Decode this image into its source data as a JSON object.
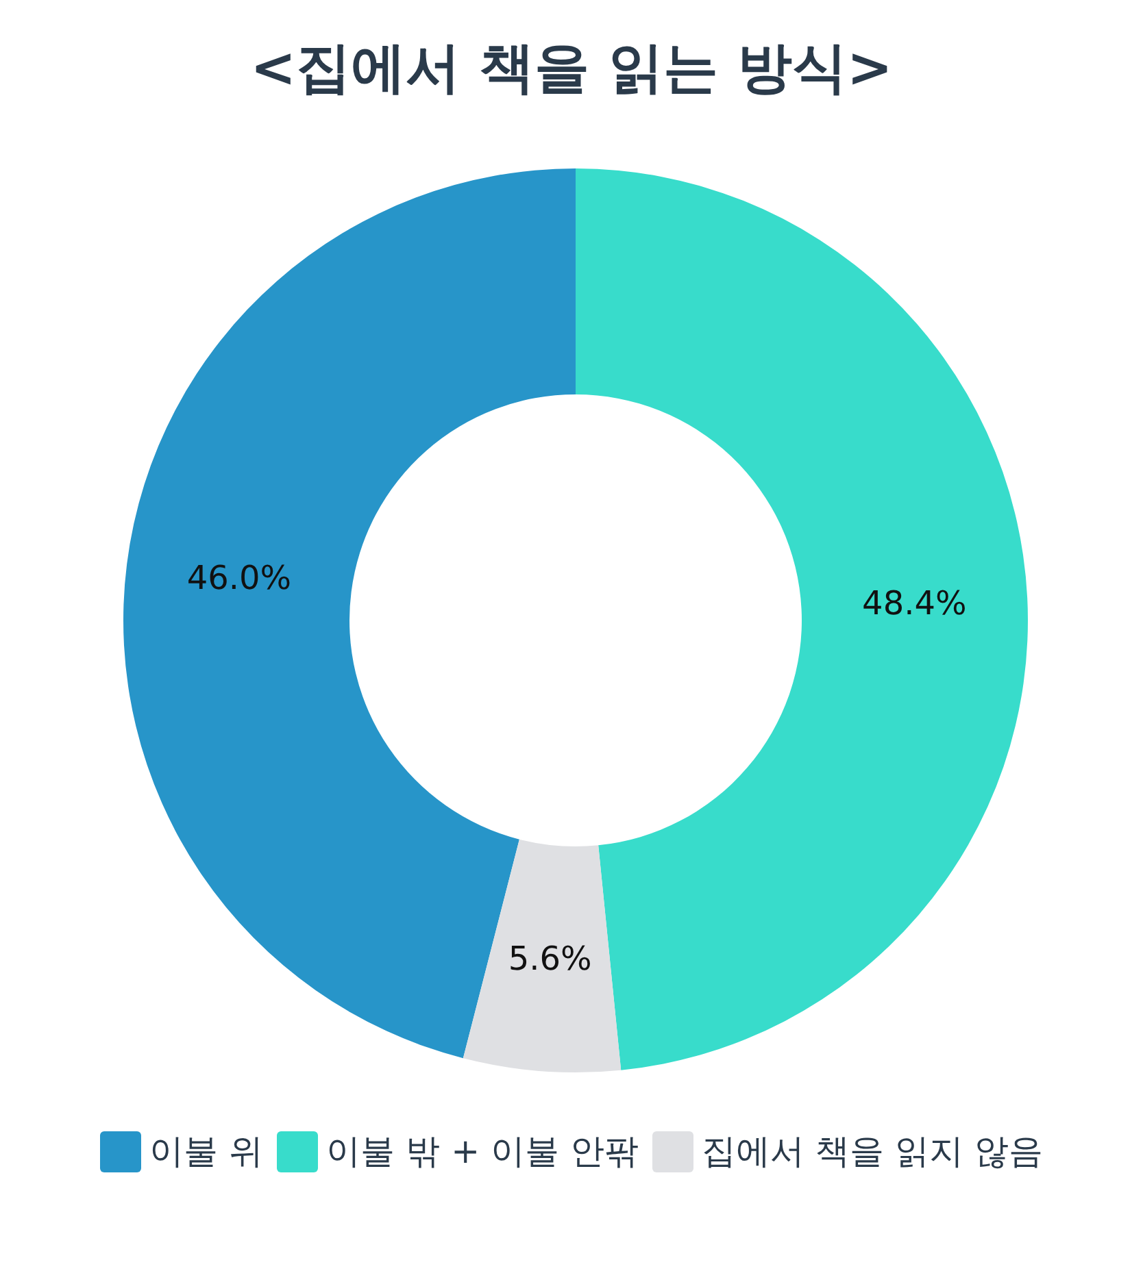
{
  "chart_data": {
    "type": "donut",
    "title": "<집에서 책을 읽는 방식>",
    "categories": [
      "이불 위",
      "이불 밖 + 이불 안팎",
      "집에서 책을 읽지 않음"
    ],
    "values": [
      46.0,
      48.4,
      5.6
    ],
    "colors": [
      "#2795c9",
      "#38dccb",
      "#dfe0e3"
    ],
    "value_labels": [
      "46.0%",
      "48.4%",
      "5.6%"
    ],
    "legend": "bottom"
  }
}
